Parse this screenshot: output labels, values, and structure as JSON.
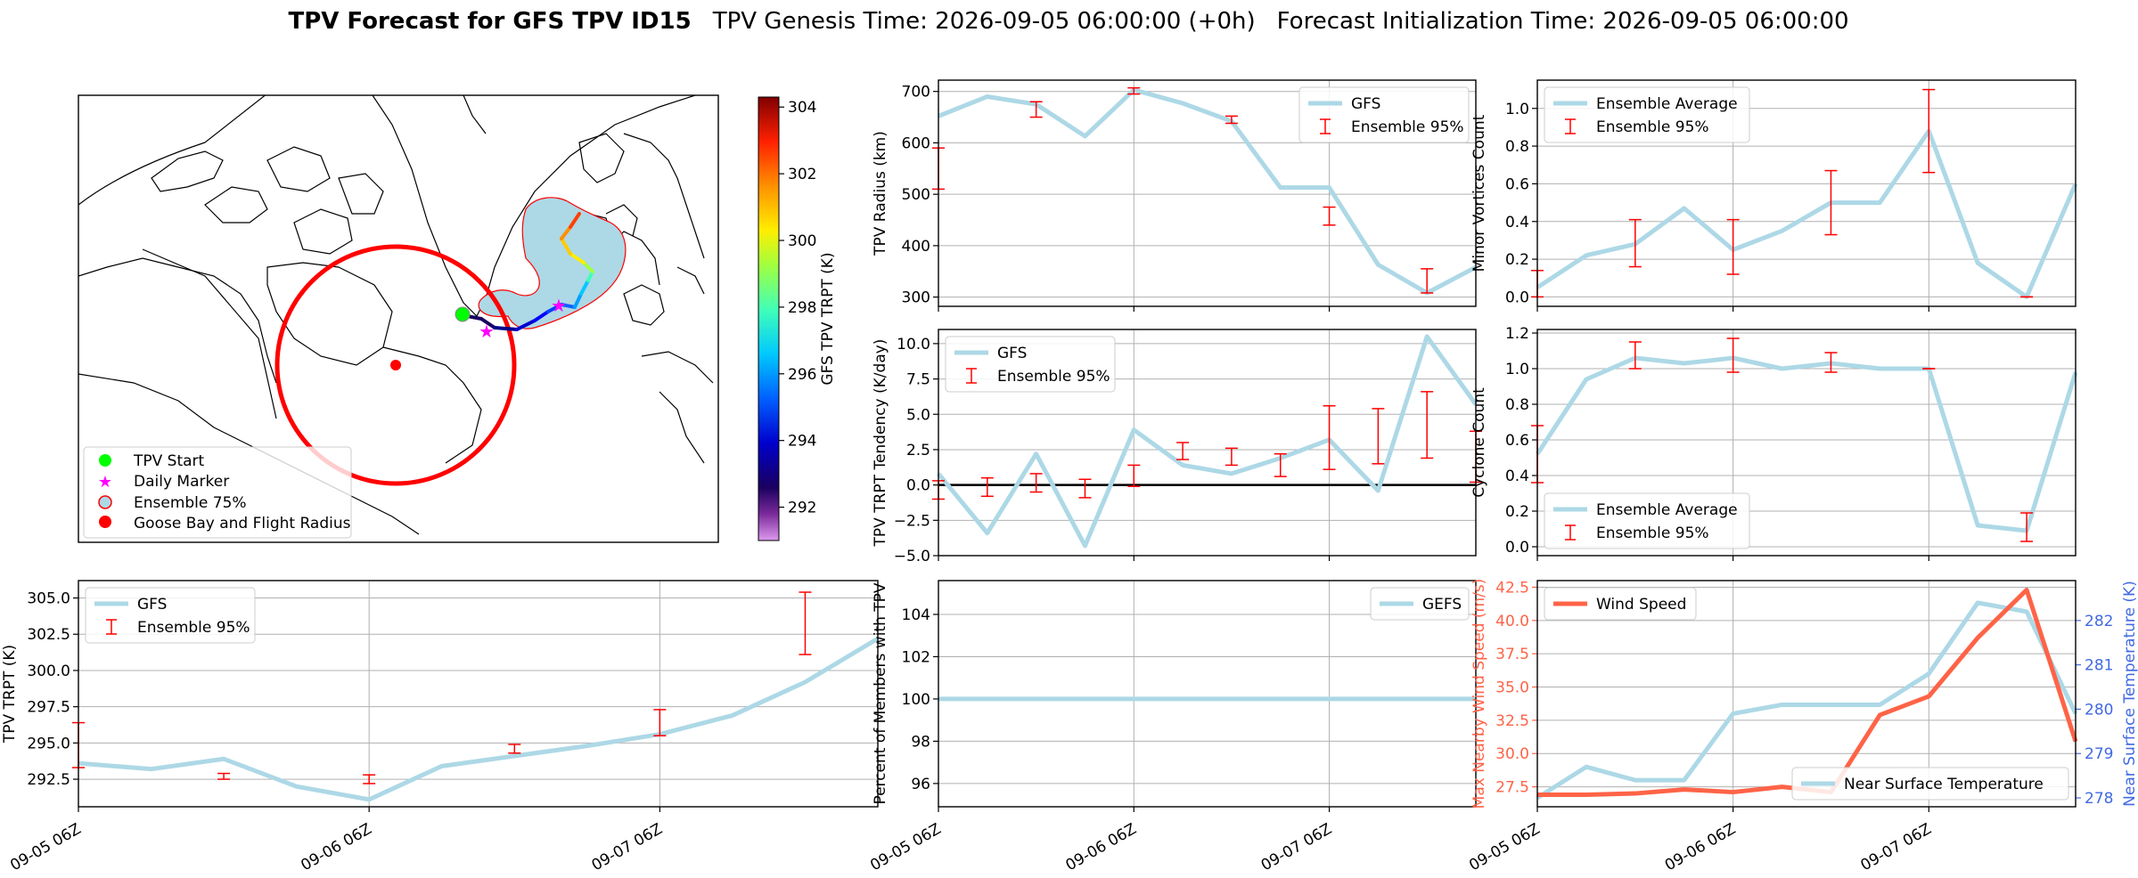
{
  "header": {
    "title_bold": "TPV Forecast for GFS TPV ID15",
    "genesis": "TPV Genesis Time: 2026-09-05 06:00:00 (+0h)",
    "init": "Forecast Initialization Time: 2026-09-05 06:00:00"
  },
  "colors": {
    "gfs": "#add8e6",
    "ensemble": "#ff0000",
    "wind": "#ff6347",
    "temp_axis": "#4169e1",
    "start": "#00ff00",
    "marker": "#ff00ff",
    "ensemble_area": "#add8e6",
    "goose_bay": "#ff0000"
  },
  "map": {
    "colorbar": {
      "label": "GFS TPV TRPT (K)",
      "ticks": [
        "292",
        "294",
        "296",
        "298",
        "300",
        "302",
        "304"
      ],
      "range": [
        291,
        304.3
      ]
    },
    "legend": [
      "TPV Start",
      "Daily Marker",
      "Ensemble 75%",
      "Goose Bay and Flight Radius"
    ]
  },
  "chart_data": [
    {
      "id": "trpt",
      "type": "line",
      "ylabel": "TPV TRPT (K)",
      "x": [
        0,
        6,
        12,
        18,
        24,
        30,
        36,
        42,
        48,
        54,
        60,
        66
      ],
      "xlim": [
        0,
        66
      ],
      "xticks": [
        {
          "at": 0,
          "label": "09-05 06Z"
        },
        {
          "at": 24,
          "label": "09-06 06Z"
        },
        {
          "at": 48,
          "label": "09-07 06Z"
        }
      ],
      "ylim": [
        290.6,
        306.2
      ],
      "yticks": [
        "292.5",
        "295.0",
        "297.5",
        "300.0",
        "302.5",
        "305.0"
      ],
      "series": [
        {
          "name": "GFS",
          "values": [
            293.6,
            293.2,
            293.9,
            292.0,
            291.1,
            293.4,
            294.1,
            294.8,
            295.6,
            296.9,
            299.2,
            302.2
          ]
        }
      ],
      "errorbars": {
        "name": "Ensemble 95%",
        "x": [
          0,
          12,
          24,
          36,
          48,
          60
        ],
        "low": [
          293.3,
          292.5,
          292.2,
          294.3,
          295.5,
          301.1
        ],
        "high": [
          296.4,
          292.9,
          292.8,
          294.9,
          297.3,
          305.4
        ]
      },
      "legend": "top-left"
    },
    {
      "id": "radius",
      "type": "line",
      "ylabel": "TPV Radius (km)",
      "x": [
        0,
        6,
        12,
        18,
        24,
        30,
        36,
        42,
        48,
        54,
        60,
        66
      ],
      "xlim": [
        0,
        66
      ],
      "xticks": [
        {
          "at": 0,
          "label": "09-05 06Z"
        },
        {
          "at": 24,
          "label": "09-06 06Z"
        },
        {
          "at": 48,
          "label": "09-07 06Z"
        }
      ],
      "ylim": [
        282,
        722
      ],
      "yticks": [
        "300",
        "400",
        "500",
        "600",
        "700"
      ],
      "series": [
        {
          "name": "GFS",
          "values": [
            652,
            690,
            675,
            613,
            703,
            677,
            642,
            513,
            513,
            363,
            308,
            358
          ]
        }
      ],
      "errorbars": {
        "name": "Ensemble 95%",
        "x": [
          0,
          12,
          24,
          36,
          48,
          60
        ],
        "low": [
          510,
          650,
          695,
          638,
          440,
          308
        ],
        "high": [
          590,
          680,
          707,
          652,
          475,
          355
        ]
      },
      "legend": "top-right"
    },
    {
      "id": "minor",
      "type": "line",
      "ylabel": "Minor Vortices Count",
      "x": [
        0,
        6,
        12,
        18,
        24,
        30,
        36,
        42,
        48,
        54,
        60,
        66
      ],
      "xlim": [
        0,
        66
      ],
      "xticks": [
        {
          "at": 0,
          "label": "09-05 06Z"
        },
        {
          "at": 24,
          "label": "09-06 06Z"
        },
        {
          "at": 48,
          "label": "09-07 06Z"
        }
      ],
      "ylim": [
        -0.05,
        1.15
      ],
      "yticks": [
        "0.0",
        "0.2",
        "0.4",
        "0.6",
        "0.8",
        "1.0"
      ],
      "series": [
        {
          "name": "Ensemble Average",
          "values": [
            0.05,
            0.22,
            0.28,
            0.47,
            0.25,
            0.35,
            0.5,
            0.5,
            0.88,
            0.18,
            0.0,
            0.6
          ]
        }
      ],
      "errorbars": {
        "name": "Ensemble 95%",
        "x": [
          0,
          12,
          24,
          36,
          48,
          60
        ],
        "low": [
          0.0,
          0.16,
          0.12,
          0.33,
          0.66,
          0.0
        ],
        "high": [
          0.14,
          0.41,
          0.41,
          0.67,
          1.1,
          0.0
        ]
      },
      "legend": "top-left"
    },
    {
      "id": "tendency",
      "type": "line",
      "ylabel": "TPV TRPT Tendency (K/day)",
      "x": [
        0,
        6,
        12,
        18,
        24,
        30,
        36,
        42,
        48,
        54,
        60,
        66
      ],
      "xlim": [
        0,
        66
      ],
      "xticks": [
        {
          "at": 0,
          "label": "09-05 06Z"
        },
        {
          "at": 24,
          "label": "09-06 06Z"
        },
        {
          "at": 48,
          "label": "09-07 06Z"
        }
      ],
      "ylim": [
        -5.0,
        11.0
      ],
      "yticks": [
        "−5.0",
        "−2.5",
        "0.0",
        "2.5",
        "5.0",
        "7.5",
        "10.0"
      ],
      "zero_line": 0,
      "series": [
        {
          "name": "GFS",
          "values": [
            0.8,
            -3.4,
            2.2,
            -4.3,
            3.9,
            1.4,
            0.8,
            1.9,
            3.2,
            -0.4,
            10.5,
            5.7
          ]
        }
      ],
      "errorbars": {
        "name": "Ensemble 95%",
        "x": [
          0,
          6,
          12,
          18,
          24,
          30,
          36,
          42,
          48,
          54,
          60,
          66
        ],
        "low": [
          -1.0,
          -0.8,
          -0.5,
          -0.9,
          -0.1,
          1.8,
          1.4,
          0.6,
          1.1,
          1.5,
          1.9,
          0.2
        ],
        "high": [
          0.3,
          0.5,
          0.8,
          0.4,
          1.4,
          3.0,
          2.6,
          2.2,
          5.6,
          5.4,
          6.6,
          3.8
        ]
      },
      "legend": "top-left"
    },
    {
      "id": "cyclone",
      "type": "line",
      "ylabel": "Cyclone Count",
      "x": [
        0,
        6,
        12,
        18,
        24,
        30,
        36,
        42,
        48,
        54,
        60,
        66
      ],
      "xlim": [
        0,
        66
      ],
      "xticks": [
        {
          "at": 0,
          "label": "09-05 06Z"
        },
        {
          "at": 24,
          "label": "09-06 06Z"
        },
        {
          "at": 48,
          "label": "09-07 06Z"
        }
      ],
      "ylim": [
        -0.05,
        1.22
      ],
      "yticks": [
        "0.0",
        "0.2",
        "0.4",
        "0.6",
        "0.8",
        "1.0",
        "1.2"
      ],
      "series": [
        {
          "name": "Ensemble Average",
          "values": [
            0.52,
            0.94,
            1.06,
            1.03,
            1.06,
            1.0,
            1.03,
            1.0,
            1.0,
            0.12,
            0.09,
            0.98
          ]
        }
      ],
      "errorbars": {
        "name": "Ensemble 95%",
        "x": [
          0,
          12,
          24,
          36,
          48,
          60
        ],
        "low": [
          0.36,
          1.0,
          0.98,
          0.98,
          1.0,
          0.03
        ],
        "high": [
          0.68,
          1.15,
          1.17,
          1.09,
          1.0,
          0.19
        ]
      },
      "legend": "bottom-left"
    },
    {
      "id": "members",
      "type": "line",
      "ylabel": "Percent of Members with TPV",
      "x": [
        0,
        6,
        12,
        18,
        24,
        30,
        36,
        42,
        48,
        54,
        60,
        66
      ],
      "xlim": [
        0,
        66
      ],
      "xticks": [
        {
          "at": 0,
          "label": "09-05 06Z"
        },
        {
          "at": 24,
          "label": "09-06 06Z"
        },
        {
          "at": 48,
          "label": "09-07 06Z"
        }
      ],
      "ylim": [
        94.9,
        105.6
      ],
      "yticks": [
        "96",
        "98",
        "100",
        "102",
        "104"
      ],
      "series": [
        {
          "name": "GEFS",
          "values": [
            100,
            100,
            100,
            100,
            100,
            100,
            100,
            100,
            100,
            100,
            100,
            100
          ]
        }
      ],
      "legend": "top-right"
    },
    {
      "id": "wind",
      "type": "line",
      "ylabel": "Max Nearby Wind Speed (m/s)",
      "ylabel_right": "Near Surface Temperature (K)",
      "x": [
        0,
        6,
        12,
        18,
        24,
        30,
        36,
        42,
        48,
        54,
        60,
        66
      ],
      "xlim": [
        0,
        66
      ],
      "xticks": [
        {
          "at": 0,
          "label": "09-05 06Z"
        },
        {
          "at": 24,
          "label": "09-06 06Z"
        },
        {
          "at": 48,
          "label": "09-07 06Z"
        }
      ],
      "ylim": [
        26.0,
        43.0
      ],
      "yticks": [
        "27.5",
        "30.0",
        "32.5",
        "35.0",
        "37.5",
        "40.0",
        "42.5"
      ],
      "ylim_right": [
        277.8,
        282.9
      ],
      "yticks_right": [
        "278",
        "279",
        "280",
        "281",
        "282"
      ],
      "series": [
        {
          "name": "Wind Speed",
          "values": [
            26.9,
            26.9,
            27.0,
            27.3,
            27.1,
            27.5,
            27.1,
            32.9,
            34.3,
            38.7,
            42.3,
            30.9
          ]
        }
      ],
      "series_right": [
        {
          "name": "Near Surface Temperature",
          "values": [
            278.0,
            278.7,
            278.4,
            278.4,
            279.9,
            280.1,
            280.1,
            280.1,
            280.8,
            282.4,
            282.2,
            279.9
          ]
        }
      ],
      "legend": "top-left",
      "legend_right": "bottom-right"
    }
  ]
}
